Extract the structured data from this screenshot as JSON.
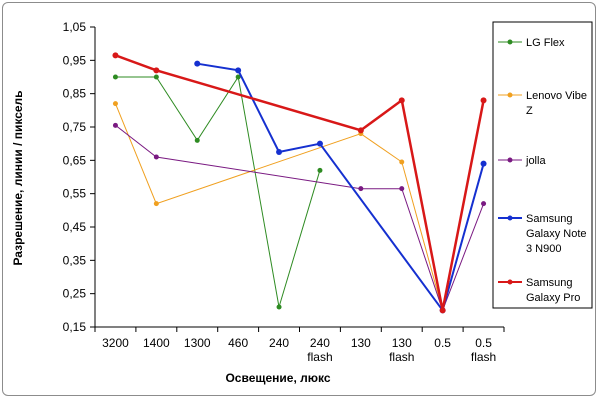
{
  "chart_data": {
    "type": "line",
    "title": "",
    "xlabel": "Освещение, люкс",
    "ylabel": "Разрешение, линии / пиксель",
    "ylim": [
      0.15,
      1.05
    ],
    "yticks": [
      "1,05",
      "0,95",
      "0,85",
      "0,75",
      "0,65",
      "0,55",
      "0,45",
      "0,35",
      "0,25",
      "0,15"
    ],
    "categories": [
      [
        "3200"
      ],
      [
        "1400"
      ],
      [
        "1300"
      ],
      [
        "460"
      ],
      [
        "240"
      ],
      [
        "240",
        "flash"
      ],
      [
        "130"
      ],
      [
        "130",
        "flash"
      ],
      [
        "0.5"
      ],
      [
        "0.5",
        "flash"
      ]
    ],
    "grid": false,
    "legend_position": "right",
    "series": [
      {
        "name": "LG Flex",
        "name_lines": [
          "LG Flex"
        ],
        "color": "#2e8b22",
        "width": 1,
        "values": [
          0.9,
          0.9,
          0.71,
          0.9,
          0.21,
          0.62,
          null,
          null,
          null,
          null
        ]
      },
      {
        "name": "Lenovo Vibe Z",
        "name_lines": [
          "Lenovo Vibe",
          "Z"
        ],
        "color": "#f0a020",
        "width": 1,
        "values": [
          0.82,
          0.52,
          null,
          null,
          null,
          null,
          0.73,
          0.645,
          0.2,
          0.83
        ]
      },
      {
        "name": "jolla",
        "name_lines": [
          "jolla"
        ],
        "color": "#7a1a82",
        "width": 1,
        "values": [
          0.755,
          0.66,
          null,
          null,
          null,
          null,
          0.565,
          0.565,
          0.2,
          0.52
        ]
      },
      {
        "name": "Samsung Galaxy Note 3 N900",
        "name_lines": [
          "Samsung",
          "Galaxy Note",
          "3 N900"
        ],
        "color": "#1530d0",
        "width": 2,
        "values": [
          null,
          null,
          0.94,
          0.92,
          0.675,
          0.7,
          null,
          null,
          0.2,
          0.64
        ]
      },
      {
        "name": "Samsung Galaxy Pro",
        "name_lines": [
          "Samsung",
          "Galaxy Pro"
        ],
        "color": "#d81818",
        "width": 2.5,
        "values": [
          0.965,
          0.92,
          null,
          null,
          null,
          null,
          0.74,
          0.83,
          0.2,
          0.83
        ]
      }
    ]
  }
}
